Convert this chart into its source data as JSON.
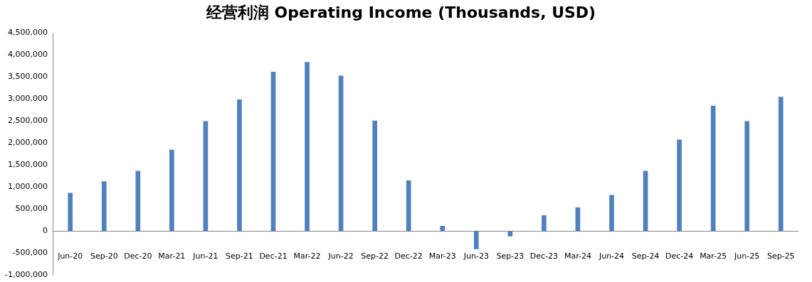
{
  "chart_data": {
    "type": "bar",
    "title": "经营利润 Operating Income (Thousands, USD)",
    "categories": [
      "Jun-20",
      "Sep-20",
      "Dec-20",
      "Mar-21",
      "Jun-21",
      "Sep-21",
      "Dec-21",
      "Mar-22",
      "Jun-22",
      "Sep-22",
      "Dec-22",
      "Mar-23",
      "Jun-23",
      "Sep-23",
      "Dec-23",
      "Mar-24",
      "Jun-24",
      "Sep-24",
      "Dec-24",
      "Mar-25",
      "Jun-25",
      "Sep-25"
    ],
    "values": [
      870000,
      1130000,
      1370000,
      1850000,
      2500000,
      2990000,
      3620000,
      3840000,
      3530000,
      2510000,
      1150000,
      120000,
      -410000,
      -120000,
      360000,
      540000,
      820000,
      1370000,
      2080000,
      2850000,
      2500000,
      3050000
    ],
    "color": "#4f81bd",
    "ylim": [
      -1000000,
      4500000
    ],
    "yticks": [
      {
        "value": -1000000,
        "label": "-1,000,000"
      },
      {
        "value": -500000,
        "label": "-500,000"
      },
      0,
      {
        "value": 500000,
        "label": "500,000"
      },
      {
        "value": 1000000,
        "label": "1,000,000"
      },
      {
        "value": 1500000,
        "label": "1,500,000"
      },
      {
        "value": 2000000,
        "label": "2,000,000"
      },
      {
        "value": 2500000,
        "label": "2,500,000"
      },
      {
        "value": 3000000,
        "label": "3,000,000"
      },
      {
        "value": 3500000,
        "label": "3,500,000"
      },
      {
        "value": 4000000,
        "label": "4,000,000"
      },
      {
        "value": 4500000,
        "label": "4,500,000"
      }
    ],
    "legend": false
  }
}
